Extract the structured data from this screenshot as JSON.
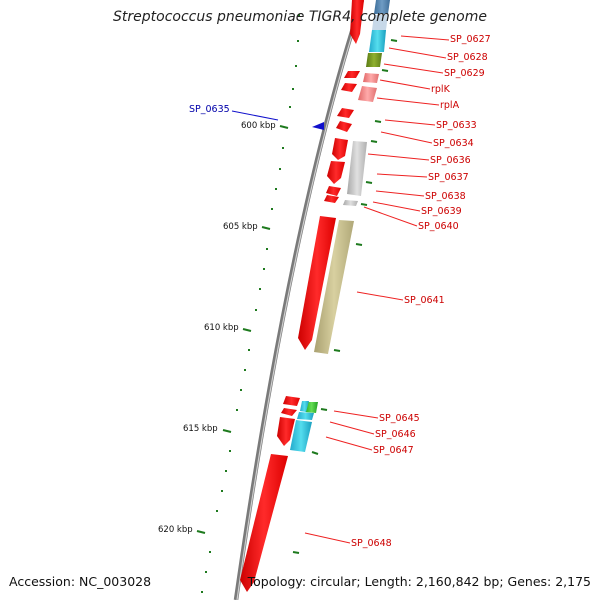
{
  "title": "Streptococcus pneumoniae TIGR4, complete genome",
  "footer": {
    "accession": "Accession: NC_003028",
    "summary": "Topology: circular; Length: 2,160,842 bp; Genes: 2,175"
  },
  "scale_labels": [
    "600 kbp",
    "605 kbp",
    "610 kbp",
    "615 kbp",
    "620 kbp"
  ],
  "colors": {
    "forward_gene": "#ff0000",
    "reverse_gene": "#1010cc",
    "label": "#cc0000",
    "label_reverse": "#0000aa",
    "tick": "#1e7a1e",
    "backbone": "#808080"
  },
  "genes": [
    {
      "name": "SP_0627"
    },
    {
      "name": "SP_0628"
    },
    {
      "name": "SP_0629"
    },
    {
      "name": "rplK"
    },
    {
      "name": "rplA"
    },
    {
      "name": "SP_0633"
    },
    {
      "name": "SP_0634"
    },
    {
      "name": "SP_0635"
    },
    {
      "name": "SP_0636"
    },
    {
      "name": "SP_0637"
    },
    {
      "name": "SP_0638"
    },
    {
      "name": "SP_0639"
    },
    {
      "name": "SP_0640"
    },
    {
      "name": "SP_0641"
    },
    {
      "name": "SP_0645"
    },
    {
      "name": "SP_0646"
    },
    {
      "name": "SP_0647"
    },
    {
      "name": "SP_0648"
    }
  ]
}
